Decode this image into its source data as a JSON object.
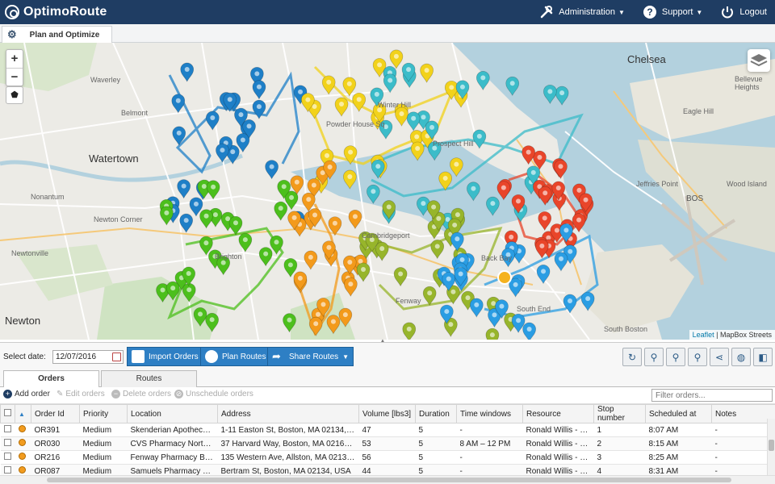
{
  "app": {
    "name": "OptimoRoute"
  },
  "header": {
    "administration_label": "Administration",
    "support_label": "Support",
    "logout_label": "Logout"
  },
  "page_tab": {
    "label": "Plan and Optimize"
  },
  "map": {
    "places": [
      "Chelsea",
      "Watertown",
      "Newton",
      "Cambridgeport",
      "Waverley",
      "Belmont",
      "Nonantum",
      "Newton Corner",
      "Newtonville",
      "Brighton",
      "Winter Hill",
      "Powder House Sq",
      "Prospect Hill",
      "Fenway",
      "Bellevue Heights",
      "Eagle Hill",
      "Jeffries Point",
      "Wood Island",
      "BOS",
      "South End",
      "South Boston",
      "Back Bay"
    ],
    "attribution_link": "Leaflet",
    "attribution_text": "| MapBox Streets"
  },
  "toolbar": {
    "date_label": "Select date:",
    "date_value": "12/07/2016",
    "import_orders": "Import Orders",
    "plan_routes": "Plan Routes",
    "share_routes": "Share Routes"
  },
  "tabs": {
    "orders": "Orders",
    "routes": "Routes"
  },
  "actions": {
    "add_order": "Add order",
    "edit_orders": "Edit orders",
    "delete_orders": "Delete orders",
    "unschedule_orders": "Unschedule orders",
    "filter_placeholder": "Filter orders..."
  },
  "table": {
    "columns": [
      "Order Id",
      "Priority",
      "Location",
      "Address",
      "Volume [lbs3]",
      "Duration",
      "Time windows",
      "Resource",
      "Stop number",
      "Scheduled at",
      "Notes"
    ],
    "rows": [
      {
        "id": "OR391",
        "priority": "Medium",
        "location": "Skenderian Apothecary...",
        "address": "1-11 Easton St, Boston, MA 02134, USA",
        "volume": "47",
        "duration": "5",
        "time_windows": "-",
        "resource": "Ronald Willis - Van",
        "stop": "1",
        "scheduled": "8:07 AM",
        "notes": "-"
      },
      {
        "id": "OR030",
        "priority": "Medium",
        "location": "CVS Pharmacy North E...",
        "address": "37 Harvard Way, Boston, MA 02163, U...",
        "volume": "53",
        "duration": "5",
        "time_windows": "8 AM – 12 PM",
        "resource": "Ronald Willis - Van",
        "stop": "2",
        "scheduled": "8:15 AM",
        "notes": "-"
      },
      {
        "id": "OR216",
        "priority": "Medium",
        "location": "Fenway Pharmacy Bac...",
        "address": "135 Western Ave, Allston, MA 02134, ...",
        "volume": "56",
        "duration": "5",
        "time_windows": "-",
        "resource": "Ronald Willis - Van",
        "stop": "3",
        "scheduled": "8:25 AM",
        "notes": "-"
      },
      {
        "id": "OR087",
        "priority": "Medium",
        "location": "Samuels Pharmacy Wi...",
        "address": "Bertram St, Boston, MA 02134, USA",
        "volume": "44",
        "duration": "5",
        "time_windows": "-",
        "resource": "Ronald Willis - Van",
        "stop": "4",
        "scheduled": "8:31 AM",
        "notes": "-"
      }
    ]
  },
  "colors": {
    "header_bg": "#1f3d63",
    "button_blue": "#2e7fc4",
    "route_blue": "#1e7fc7",
    "route_yellow": "#f2d21b",
    "route_cyan": "#3bbcc9",
    "route_red": "#e9452a",
    "route_green": "#4cbf1c",
    "route_orange": "#f39a1b",
    "route_olive": "#97b52b",
    "route_sky": "#2a9de3"
  }
}
